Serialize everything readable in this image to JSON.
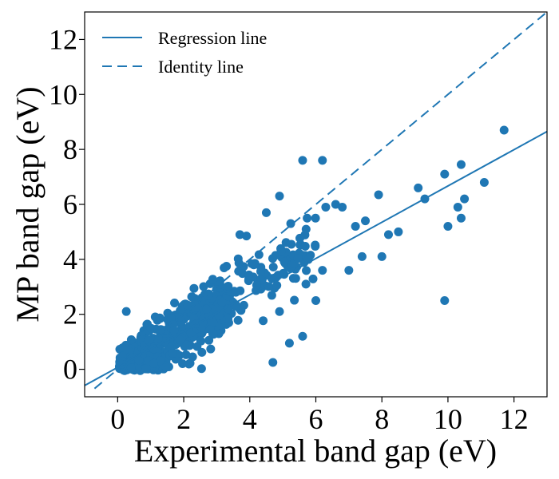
{
  "chart_data": {
    "type": "scatter",
    "xlabel": "Experimental band gap (eV)",
    "ylabel": "MP band gap (eV)",
    "xlim": [
      -1,
      13
    ],
    "ylim": [
      -1,
      13
    ],
    "xticks": [
      0,
      2,
      4,
      6,
      8,
      10,
      12
    ],
    "yticks": [
      0,
      2,
      4,
      6,
      8,
      10,
      12
    ],
    "grid": false,
    "legend_position": "top-left",
    "color": "#1f77b4",
    "legend": [
      {
        "label": "Regression line",
        "style": "solid"
      },
      {
        "label": "Identity line",
        "style": "dashed"
      }
    ],
    "regression_line": {
      "slope": 0.66,
      "intercept": 0.07
    },
    "identity_line": {
      "slope": 1.0,
      "intercept": 0.0
    },
    "outlier_points": [
      [
        5.6,
        7.6
      ],
      [
        6.2,
        7.6
      ],
      [
        11.7,
        8.7
      ],
      [
        9.9,
        7.1
      ],
      [
        10.4,
        7.45
      ],
      [
        9.1,
        6.6
      ],
      [
        9.3,
        6.2
      ],
      [
        11.1,
        6.8
      ],
      [
        10.5,
        6.2
      ],
      [
        10.3,
        5.9
      ],
      [
        10.0,
        5.2
      ],
      [
        10.4,
        5.5
      ],
      [
        9.9,
        2.5
      ],
      [
        4.9,
        6.3
      ],
      [
        4.5,
        5.7
      ],
      [
        7.9,
        6.35
      ],
      [
        7.2,
        5.2
      ],
      [
        7.5,
        5.4
      ],
      [
        7.0,
        3.6
      ],
      [
        8.0,
        4.1
      ],
      [
        8.2,
        4.9
      ],
      [
        8.5,
        5.0
      ],
      [
        7.4,
        4.1
      ],
      [
        6.6,
        6.0
      ],
      [
        6.8,
        5.9
      ],
      [
        6.3,
        5.9
      ],
      [
        3.7,
        4.9
      ],
      [
        3.9,
        4.85
      ],
      [
        4.7,
        0.25
      ],
      [
        5.2,
        0.95
      ],
      [
        5.6,
        1.2
      ],
      [
        4.9,
        2.1
      ],
      [
        6.0,
        2.5
      ],
      [
        5.7,
        3.1
      ],
      [
        6.2,
        3.6
      ]
    ],
    "dense_cloud": {
      "x_range": [
        0,
        5
      ],
      "y_range": [
        0,
        5
      ],
      "point_count": 900,
      "note_for_render": "procedural"
    }
  }
}
